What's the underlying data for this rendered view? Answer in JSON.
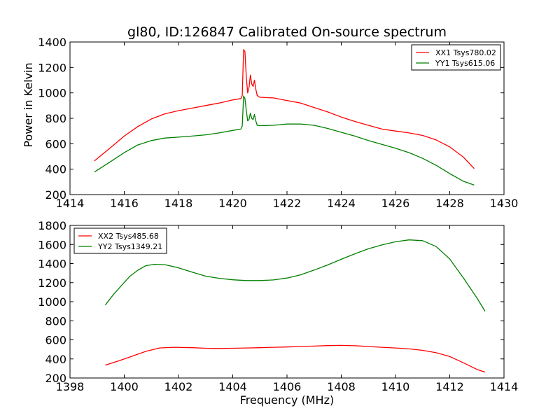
{
  "chart_data": [
    {
      "type": "line",
      "title": "gl80, ID:126847 Calibrated On-source spectrum",
      "xlabel": "",
      "ylabel": "Power in Kelvin",
      "xlim": [
        1414,
        1430
      ],
      "ylim": [
        200,
        1400
      ],
      "xticks": [
        1414,
        1416,
        1418,
        1420,
        1422,
        1424,
        1426,
        1428,
        1430
      ],
      "yticks": [
        200,
        400,
        600,
        800,
        1000,
        1200,
        1400
      ],
      "grid": false,
      "legend_position": "top-right",
      "series": [
        {
          "name": "XX1 Tsys780.02",
          "color": "#ff0000",
          "points": [
            [
              1414.9,
              465
            ],
            [
              1415.5,
              570
            ],
            [
              1416,
              660
            ],
            [
              1416.5,
              735
            ],
            [
              1417,
              795
            ],
            [
              1417.5,
              835
            ],
            [
              1418,
              860
            ],
            [
              1418.5,
              880
            ],
            [
              1419,
              900
            ],
            [
              1419.5,
              920
            ],
            [
              1420,
              945
            ],
            [
              1420.3,
              955
            ],
            [
              1420.35,
              980
            ],
            [
              1420.4,
              1340
            ],
            [
              1420.45,
              1325
            ],
            [
              1420.5,
              1120
            ],
            [
              1420.55,
              1000
            ],
            [
              1420.6,
              1040
            ],
            [
              1420.65,
              1140
            ],
            [
              1420.7,
              1070
            ],
            [
              1420.75,
              1050
            ],
            [
              1420.8,
              1100
            ],
            [
              1420.85,
              1030
            ],
            [
              1420.9,
              980
            ],
            [
              1421,
              965
            ],
            [
              1421.5,
              960
            ],
            [
              1422,
              940
            ],
            [
              1422.5,
              920
            ],
            [
              1423,
              885
            ],
            [
              1423.5,
              850
            ],
            [
              1424,
              810
            ],
            [
              1424.5,
              775
            ],
            [
              1425,
              745
            ],
            [
              1425.5,
              715
            ],
            [
              1426,
              700
            ],
            [
              1426.5,
              685
            ],
            [
              1427,
              665
            ],
            [
              1427.5,
              630
            ],
            [
              1428,
              575
            ],
            [
              1428.5,
              495
            ],
            [
              1428.9,
              405
            ]
          ]
        },
        {
          "name": "YY1 Tsys615.06",
          "color": "#008000",
          "points": [
            [
              1414.9,
              378
            ],
            [
              1415.5,
              460
            ],
            [
              1416,
              530
            ],
            [
              1416.5,
              590
            ],
            [
              1417,
              625
            ],
            [
              1417.5,
              645
            ],
            [
              1418,
              652
            ],
            [
              1418.5,
              660
            ],
            [
              1419,
              670
            ],
            [
              1419.5,
              685
            ],
            [
              1420,
              705
            ],
            [
              1420.3,
              715
            ],
            [
              1420.35,
              740
            ],
            [
              1420.4,
              975
            ],
            [
              1420.45,
              955
            ],
            [
              1420.5,
              860
            ],
            [
              1420.55,
              780
            ],
            [
              1420.6,
              790
            ],
            [
              1420.65,
              840
            ],
            [
              1420.7,
              800
            ],
            [
              1420.75,
              790
            ],
            [
              1420.8,
              830
            ],
            [
              1420.85,
              780
            ],
            [
              1420.9,
              745
            ],
            [
              1421,
              742
            ],
            [
              1421.5,
              745
            ],
            [
              1422,
              755
            ],
            [
              1422.5,
              755
            ],
            [
              1423,
              745
            ],
            [
              1423.5,
              720
            ],
            [
              1424,
              690
            ],
            [
              1424.5,
              660
            ],
            [
              1425,
              625
            ],
            [
              1425.5,
              595
            ],
            [
              1426,
              565
            ],
            [
              1426.5,
              530
            ],
            [
              1427,
              485
            ],
            [
              1427.5,
              430
            ],
            [
              1428,
              365
            ],
            [
              1428.5,
              305
            ],
            [
              1428.9,
              275
            ]
          ]
        }
      ]
    },
    {
      "type": "line",
      "title": "",
      "xlabel": "Frequency (MHz)",
      "ylabel": "",
      "xlim": [
        1398,
        1414
      ],
      "ylim": [
        200,
        1800
      ],
      "xticks": [
        1398,
        1400,
        1402,
        1404,
        1406,
        1408,
        1410,
        1412,
        1414
      ],
      "yticks": [
        200,
        400,
        600,
        800,
        1000,
        1200,
        1400,
        1600,
        1800
      ],
      "grid": false,
      "legend_position": "top-left",
      "series": [
        {
          "name": "XX2 Tsys485.68",
          "color": "#ff0000",
          "points": [
            [
              1399.3,
              335
            ],
            [
              1399.8,
              380
            ],
            [
              1400.3,
              430
            ],
            [
              1400.8,
              480
            ],
            [
              1401.3,
              515
            ],
            [
              1401.8,
              522
            ],
            [
              1402.5,
              518
            ],
            [
              1403,
              512
            ],
            [
              1403.5,
              510
            ],
            [
              1404,
              512
            ],
            [
              1404.5,
              515
            ],
            [
              1405,
              518
            ],
            [
              1405.5,
              522
            ],
            [
              1406,
              525
            ],
            [
              1406.5,
              530
            ],
            [
              1407,
              535
            ],
            [
              1407.5,
              540
            ],
            [
              1408,
              542
            ],
            [
              1408.5,
              538
            ],
            [
              1409,
              530
            ],
            [
              1409.5,
              522
            ],
            [
              1410,
              515
            ],
            [
              1410.5,
              505
            ],
            [
              1411,
              490
            ],
            [
              1411.5,
              465
            ],
            [
              1412,
              425
            ],
            [
              1412.5,
              360
            ],
            [
              1413,
              290
            ],
            [
              1413.3,
              262
            ]
          ]
        },
        {
          "name": "YY2 Tsys1349.21",
          "color": "#008000",
          "points": [
            [
              1399.3,
              965
            ],
            [
              1399.6,
              1075
            ],
            [
              1399.9,
              1170
            ],
            [
              1400.2,
              1265
            ],
            [
              1400.5,
              1330
            ],
            [
              1400.8,
              1378
            ],
            [
              1401.1,
              1392
            ],
            [
              1401.5,
              1388
            ],
            [
              1402,
              1355
            ],
            [
              1402.5,
              1310
            ],
            [
              1403,
              1268
            ],
            [
              1403.5,
              1245
            ],
            [
              1404,
              1230
            ],
            [
              1404.5,
              1222
            ],
            [
              1405,
              1222
            ],
            [
              1405.5,
              1228
            ],
            [
              1406,
              1248
            ],
            [
              1406.5,
              1282
            ],
            [
              1407,
              1332
            ],
            [
              1407.5,
              1385
            ],
            [
              1408,
              1445
            ],
            [
              1408.5,
              1502
            ],
            [
              1409,
              1555
            ],
            [
              1409.5,
              1595
            ],
            [
              1410,
              1628
            ],
            [
              1410.5,
              1648
            ],
            [
              1411,
              1640
            ],
            [
              1411.5,
              1578
            ],
            [
              1412,
              1448
            ],
            [
              1412.5,
              1250
            ],
            [
              1413,
              1040
            ],
            [
              1413.3,
              900
            ]
          ]
        }
      ]
    }
  ]
}
